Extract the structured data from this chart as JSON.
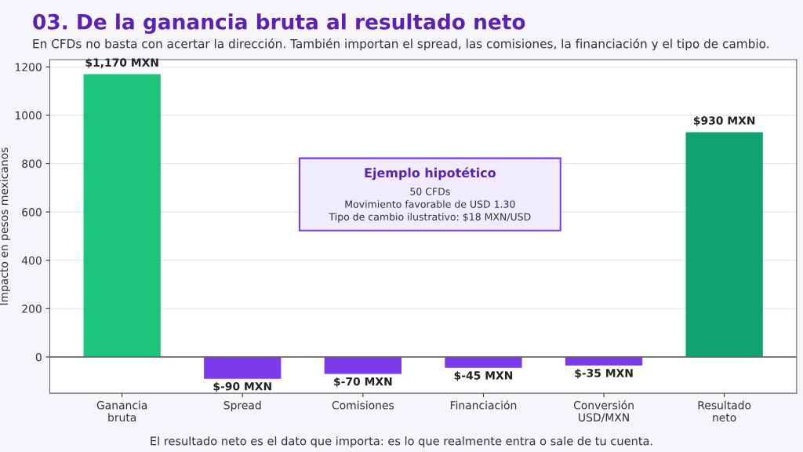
{
  "chart_data": {
    "type": "bar",
    "title": "03. De la ganancia bruta al resultado neto",
    "subtitle": "En CFDs no basta con acertar la dirección. También importan el spread, las comisiones, la financiación y el tipo de cambio.",
    "ylabel": "Impacto en pesos mexicanos",
    "categories": [
      "Ganancia\nbruta",
      "Spread",
      "Comisiones",
      "Financiación",
      "Conversión\nUSD/MXN",
      "Resultado\nneto"
    ],
    "values": [
      1170,
      -90,
      -70,
      -45,
      -35,
      930
    ],
    "colors": [
      "#1cc47c",
      "#7c3aed",
      "#7c3aed",
      "#7c3aed",
      "#7c3aed",
      "#0ea371"
    ],
    "value_labels": [
      "$1,170 MXN",
      "$-90 MXN",
      "$-70 MXN",
      "$-45 MXN",
      "$-35 MXN",
      "$930 MXN"
    ],
    "ylim": [
      -150,
      1230
    ],
    "yticks": [
      0,
      200,
      400,
      600,
      800,
      1000,
      1200
    ],
    "grid": "y",
    "ref_lines": [
      {
        "axis": "y",
        "value": 0,
        "color": "#666666"
      }
    ],
    "annotations": [
      "Ejemplo hipotético",
      "50 CFDs",
      "Movimiento favorable de USD 1.30",
      "Tipo de cambio ilustrativo: $18 MXN/USD",
      "El resultado neto es el dato que importa: es lo que realmente entra o sale de tu cuenta."
    ]
  }
}
